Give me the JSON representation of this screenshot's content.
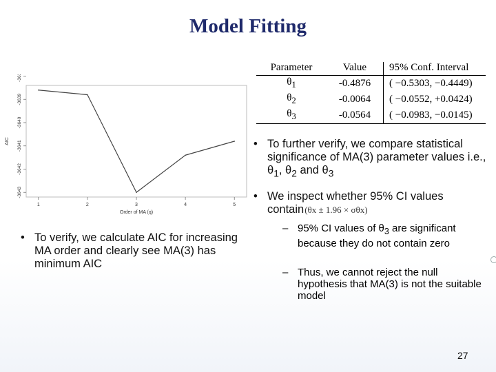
{
  "slide": {
    "title": "Model Fitting",
    "page_number": "27"
  },
  "chart_data": {
    "type": "line",
    "x": [
      1,
      2,
      3,
      4,
      5
    ],
    "values": [
      -3638.6,
      -3638.8,
      -3643.0,
      -3641.4,
      -3640.8
    ],
    "xlabel": "Order of MA (q)",
    "ylabel": "AIC",
    "x_ticks": [
      "1",
      "2",
      "3",
      "4",
      "5"
    ],
    "y_ticks": [
      "-3643",
      "-3642",
      "-3641",
      "-3640",
      "-3639",
      "-3638"
    ],
    "xlim": [
      0.75,
      5.25
    ],
    "ylim": [
      -3643.2,
      -3638.4
    ],
    "grid": false,
    "line_color": "#444444"
  },
  "table": {
    "headers": [
      "Parameter",
      "Value",
      "95%  Conf.  Interval"
    ],
    "rows": [
      {
        "param": "θ",
        "sub": "1",
        "value": "-0.4876",
        "ci": "( −0.5303,  −0.4449)"
      },
      {
        "param": "θ",
        "sub": "2",
        "value": "-0.0064",
        "ci": "( −0.0552, +0.0424)"
      },
      {
        "param": "θ",
        "sub": "3",
        "value": "-0.0564",
        "ci": "( −0.0983, −0.0145)"
      }
    ]
  },
  "bullets": {
    "verify_aic": "To verify, we calculate AIC for increasing MA order and clearly see MA(3) has minimum AIC",
    "further_verify": {
      "lead": "To further verify, we compare statistical significance of MA(3) parameter values i.e., θ",
      "s1": "1",
      "mid1": ", θ",
      "s2": "2",
      "mid2": " and θ",
      "s3": "3"
    },
    "inspect": {
      "lead": "We inspect whether 95% CI values contain",
      "formula": "(θx ± 1.96 × σθx)"
    },
    "sub1": {
      "lead": "95% CI values of θ",
      "sub": "3",
      "rest": " are significant  because they do not contain zero"
    },
    "sub2": "Thus, we cannot reject the null hypothesis that MA(3) is not the suitable model"
  },
  "glyphs": {
    "bullet": "•",
    "dash": "–"
  }
}
